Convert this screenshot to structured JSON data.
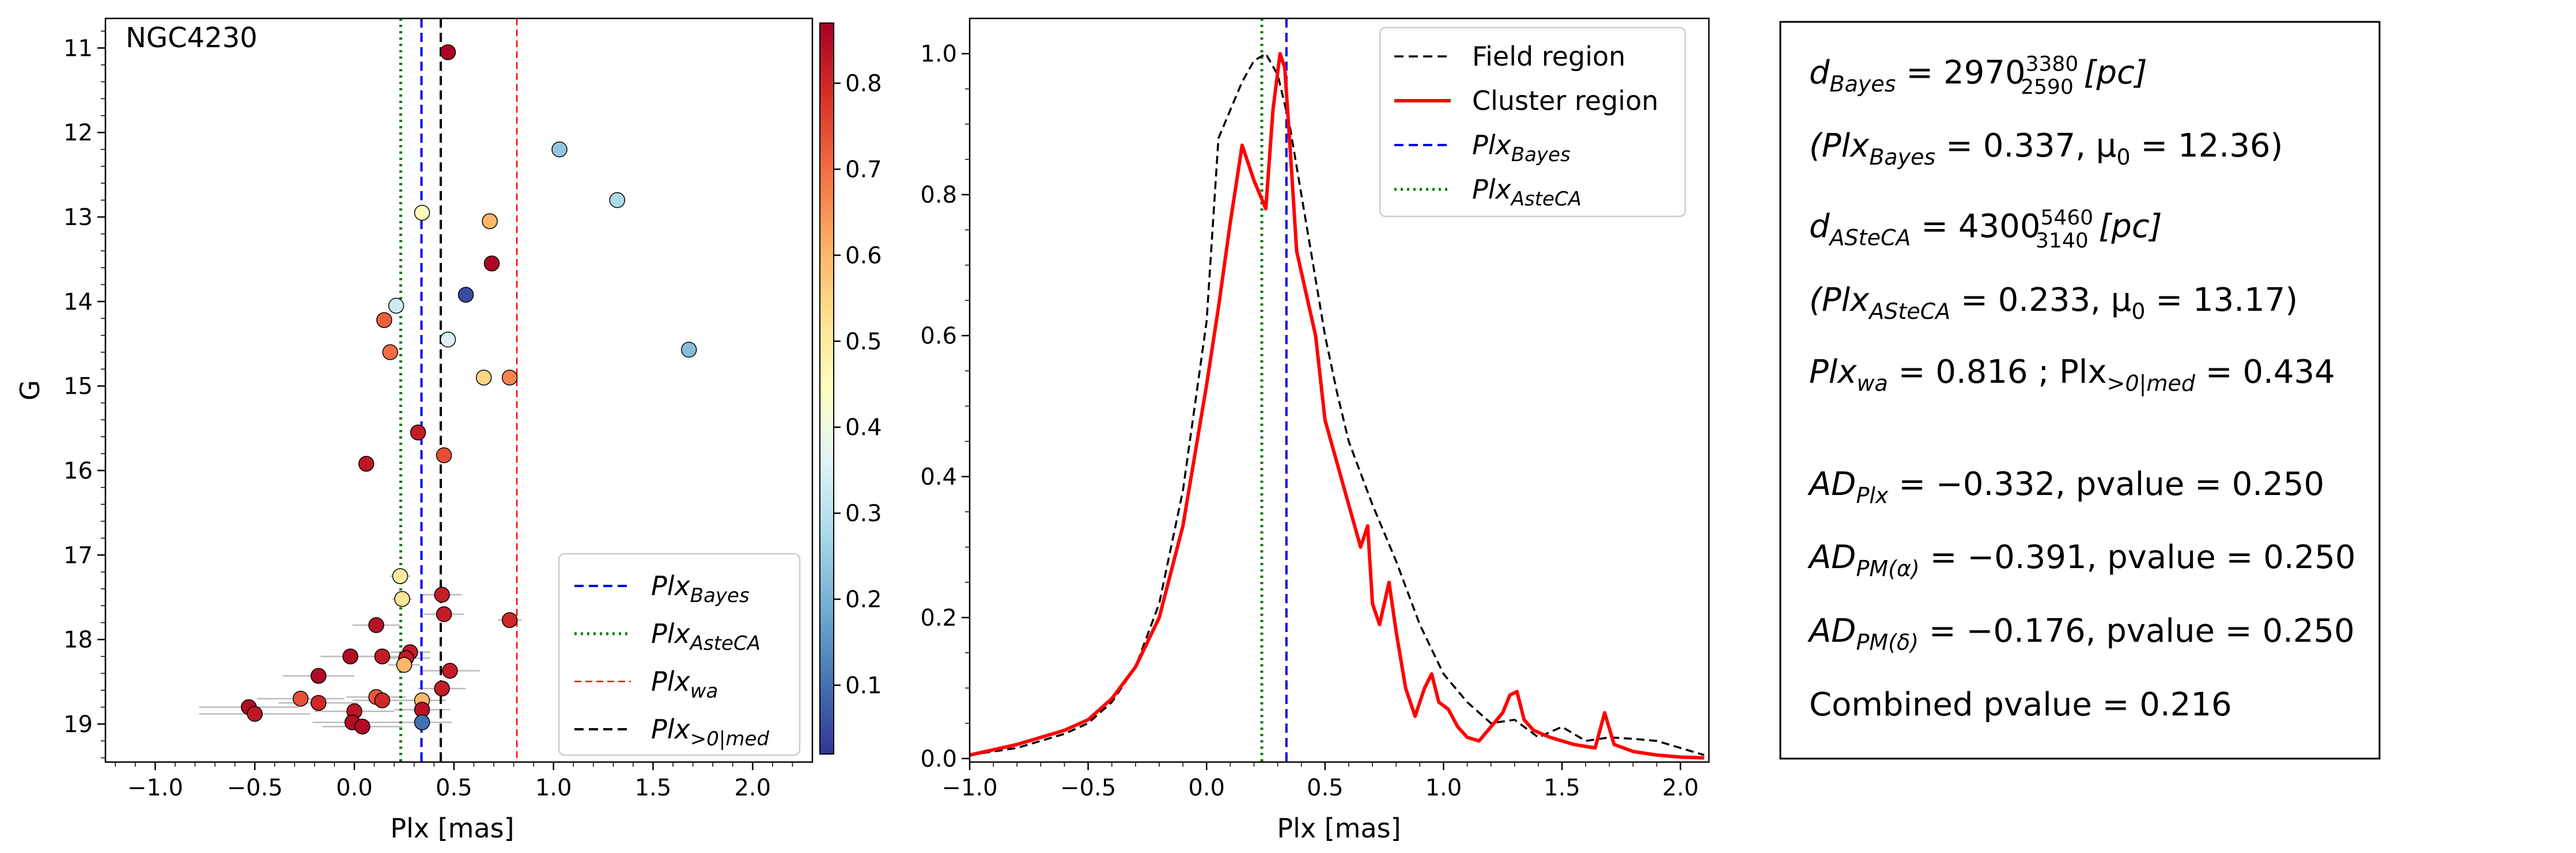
{
  "chart_data": [
    {
      "type": "scatter",
      "title": "NGC4230",
      "xlabel": "Plx [mas]",
      "ylabel": "G",
      "xlim": [
        -1.25,
        2.3
      ],
      "ylim": [
        19.45,
        10.65
      ],
      "y_inverted": true,
      "xticks": [
        "−1.0",
        "−0.5",
        "0.0",
        "0.5",
        "1.0",
        "1.5",
        "2.0"
      ],
      "yticks": [
        "11",
        "12",
        "13",
        "14",
        "15",
        "16",
        "17",
        "18",
        "19"
      ],
      "colorbar": {
        "colormap": "RdYlBu_r",
        "min": 0.02,
        "max": 0.87,
        "ticks": [
          "0.1",
          "0.2",
          "0.3",
          "0.4",
          "0.5",
          "0.6",
          "0.7",
          "0.8"
        ]
      },
      "vlines": [
        {
          "name": "Plx_Bayes",
          "x": 0.337,
          "color": "#0000ee",
          "style": "dashed"
        },
        {
          "name": "Plx_AsteCA",
          "x": 0.233,
          "color": "#008000",
          "style": "dotted"
        },
        {
          "name": "Plx_wa",
          "x": 0.816,
          "color": "#ff0000",
          "style": "dashed-thin"
        },
        {
          "name": "Plx_>0|med",
          "x": 0.434,
          "color": "#000000",
          "style": "dashed"
        }
      ],
      "legend": {
        "location": "bottom-right",
        "entries": [
          {
            "base": "Plx",
            "sub": "Bayes"
          },
          {
            "base": "Plx",
            "sub": "AsteCA"
          },
          {
            "base": "Plx",
            "sub": "wa"
          },
          {
            "base": "Plx",
            "sub": ">0|med"
          }
        ]
      },
      "points": [
        {
          "x": 0.47,
          "y": 11.05,
          "c": 0.86,
          "xerr": 0.02
        },
        {
          "x": 1.03,
          "y": 12.2,
          "c": 0.24,
          "xerr": 0.03
        },
        {
          "x": 1.32,
          "y": 12.8,
          "c": 0.28,
          "xerr": 0.03
        },
        {
          "x": 0.34,
          "y": 12.95,
          "c": 0.45,
          "xerr": 0.03
        },
        {
          "x": 0.68,
          "y": 13.05,
          "c": 0.6,
          "xerr": 0.03
        },
        {
          "x": 0.69,
          "y": 13.55,
          "c": 0.86,
          "xerr": 0.03
        },
        {
          "x": 0.56,
          "y": 13.92,
          "c": 0.05,
          "xerr": 0.03
        },
        {
          "x": 0.21,
          "y": 14.05,
          "c": 0.33,
          "xerr": 0.03
        },
        {
          "x": 0.15,
          "y": 14.22,
          "c": 0.72,
          "xerr": 0.03
        },
        {
          "x": 0.47,
          "y": 14.45,
          "c": 0.35,
          "xerr": 0.03
        },
        {
          "x": 1.68,
          "y": 14.57,
          "c": 0.22,
          "xerr": 0.04
        },
        {
          "x": 0.18,
          "y": 14.6,
          "c": 0.7,
          "xerr": 0.03
        },
        {
          "x": 0.65,
          "y": 14.9,
          "c": 0.55,
          "xerr": 0.03
        },
        {
          "x": 0.78,
          "y": 14.9,
          "c": 0.67,
          "xerr": 0.03
        },
        {
          "x": 0.32,
          "y": 15.55,
          "c": 0.82,
          "xerr": 0.04
        },
        {
          "x": 0.45,
          "y": 15.82,
          "c": 0.74,
          "xerr": 0.04
        },
        {
          "x": 0.06,
          "y": 15.92,
          "c": 0.83,
          "xerr": 0.04
        },
        {
          "x": 0.23,
          "y": 17.25,
          "c": 0.5,
          "xerr": 0.05
        },
        {
          "x": 0.44,
          "y": 17.47,
          "c": 0.82,
          "xerr": 0.1
        },
        {
          "x": 0.24,
          "y": 17.52,
          "c": 0.52,
          "xerr": 0.05
        },
        {
          "x": 0.45,
          "y": 17.7,
          "c": 0.82,
          "xerr": 0.1
        },
        {
          "x": 0.78,
          "y": 17.77,
          "c": 0.8,
          "xerr": 0.06
        },
        {
          "x": 0.11,
          "y": 17.83,
          "c": 0.84,
          "xerr": 0.12
        },
        {
          "x": 0.28,
          "y": 18.15,
          "c": 0.82,
          "xerr": 0.1
        },
        {
          "x": -0.02,
          "y": 18.2,
          "c": 0.85,
          "xerr": 0.15
        },
        {
          "x": 0.14,
          "y": 18.2,
          "c": 0.82,
          "xerr": 0.12
        },
        {
          "x": 0.26,
          "y": 18.22,
          "c": 0.82,
          "xerr": 0.12
        },
        {
          "x": 0.25,
          "y": 18.3,
          "c": 0.6,
          "xerr": 0.08
        },
        {
          "x": 0.48,
          "y": 18.37,
          "c": 0.82,
          "xerr": 0.15
        },
        {
          "x": -0.18,
          "y": 18.43,
          "c": 0.85,
          "xerr": 0.18
        },
        {
          "x": 0.44,
          "y": 18.58,
          "c": 0.82,
          "xerr": 0.12
        },
        {
          "x": 0.11,
          "y": 18.68,
          "c": 0.73,
          "xerr": 0.15
        },
        {
          "x": -0.27,
          "y": 18.7,
          "c": 0.74,
          "xerr": 0.22
        },
        {
          "x": 0.14,
          "y": 18.72,
          "c": 0.8,
          "xerr": 0.15
        },
        {
          "x": 0.34,
          "y": 18.72,
          "c": 0.6,
          "xerr": 0.12
        },
        {
          "x": -0.18,
          "y": 18.75,
          "c": 0.8,
          "xerr": 0.2
        },
        {
          "x": -0.53,
          "y": 18.8,
          "c": 0.85,
          "xerr": 0.25
        },
        {
          "x": 0.34,
          "y": 18.83,
          "c": 0.84,
          "xerr": 0.14
        },
        {
          "x": 0.0,
          "y": 18.85,
          "c": 0.83,
          "xerr": 0.2
        },
        {
          "x": -0.5,
          "y": 18.88,
          "c": 0.83,
          "xerr": 0.28
        },
        {
          "x": -0.01,
          "y": 18.98,
          "c": 0.85,
          "xerr": 0.2
        },
        {
          "x": 0.34,
          "y": 18.98,
          "c": 0.1,
          "xerr": 0.15
        },
        {
          "x": 0.04,
          "y": 19.03,
          "c": 0.85,
          "xerr": 0.2
        }
      ]
    },
    {
      "type": "line",
      "xlabel": "Plx [mas]",
      "ylabel": "",
      "xlim": [
        -1.0,
        2.12
      ],
      "ylim": [
        -0.005,
        1.05
      ],
      "xticks": [
        "−1.0",
        "−0.5",
        "0.0",
        "0.5",
        "1.0",
        "1.5",
        "2.0"
      ],
      "yticks": [
        "0.0",
        "0.2",
        "0.4",
        "0.6",
        "0.8",
        "1.0"
      ],
      "legend": {
        "location": "top-right",
        "entries": [
          {
            "label": "Field region"
          },
          {
            "label": "Cluster region"
          },
          {
            "base": "Plx",
            "sub": "Bayes"
          },
          {
            "base": "Plx",
            "sub": "AsteCA"
          }
        ]
      },
      "vlines": [
        {
          "name": "Plx_Bayes",
          "x": 0.337,
          "color": "#0000ee",
          "style": "dashed"
        },
        {
          "name": "Plx_AsteCA",
          "x": 0.233,
          "color": "#008000",
          "style": "dotted"
        }
      ],
      "series": [
        {
          "name": "Field region",
          "color": "#000000",
          "style": "dashed",
          "x": [
            -1.0,
            -0.8,
            -0.6,
            -0.5,
            -0.4,
            -0.3,
            -0.2,
            -0.1,
            0.0,
            0.05,
            0.1,
            0.15,
            0.2,
            0.25,
            0.3,
            0.35,
            0.4,
            0.45,
            0.5,
            0.55,
            0.6,
            0.7,
            0.8,
            0.9,
            1.0,
            1.1,
            1.2,
            1.3,
            1.4,
            1.5,
            1.6,
            1.7,
            1.8,
            1.9,
            2.0,
            2.1
          ],
          "y": [
            0.005,
            0.015,
            0.035,
            0.05,
            0.08,
            0.13,
            0.22,
            0.38,
            0.62,
            0.88,
            0.92,
            0.96,
            0.99,
            1.0,
            0.97,
            0.9,
            0.8,
            0.7,
            0.6,
            0.52,
            0.45,
            0.36,
            0.28,
            0.19,
            0.12,
            0.08,
            0.05,
            0.055,
            0.03,
            0.045,
            0.025,
            0.03,
            0.028,
            0.025,
            0.015,
            0.005
          ]
        },
        {
          "name": "Cluster region",
          "color": "#ff0000",
          "style": "solid",
          "x": [
            -1.0,
            -0.8,
            -0.6,
            -0.5,
            -0.4,
            -0.3,
            -0.2,
            -0.1,
            0.0,
            0.05,
            0.1,
            0.15,
            0.2,
            0.25,
            0.28,
            0.31,
            0.33,
            0.35,
            0.38,
            0.42,
            0.46,
            0.5,
            0.55,
            0.6,
            0.65,
            0.68,
            0.7,
            0.73,
            0.77,
            0.8,
            0.84,
            0.88,
            0.92,
            0.95,
            0.98,
            1.02,
            1.06,
            1.1,
            1.15,
            1.2,
            1.25,
            1.28,
            1.31,
            1.34,
            1.38,
            1.45,
            1.55,
            1.64,
            1.68,
            1.72,
            1.8,
            1.9,
            2.0,
            2.1
          ],
          "y": [
            0.005,
            0.02,
            0.04,
            0.055,
            0.085,
            0.13,
            0.2,
            0.33,
            0.53,
            0.64,
            0.76,
            0.87,
            0.82,
            0.78,
            0.92,
            1.0,
            0.98,
            0.88,
            0.72,
            0.66,
            0.6,
            0.48,
            0.42,
            0.36,
            0.3,
            0.33,
            0.22,
            0.19,
            0.25,
            0.18,
            0.1,
            0.06,
            0.1,
            0.12,
            0.08,
            0.07,
            0.045,
            0.03,
            0.025,
            0.045,
            0.065,
            0.09,
            0.095,
            0.055,
            0.04,
            0.03,
            0.02,
            0.015,
            0.065,
            0.02,
            0.01,
            0.005,
            0.002,
            0.001
          ]
        }
      ]
    }
  ],
  "stats": {
    "d_bayes": {
      "pre": "d",
      "sub": "Bayes",
      "eq": " = 2970",
      "lo": "2590",
      "hi": "3380",
      "unit": " [pc]"
    },
    "plx_bayes": {
      "open": "(Plx",
      "sub": "Bayes",
      "mid": " = 0.337,  μ",
      "sub2": "0",
      "end": " = 12.36)"
    },
    "d_asteca": {
      "pre": "d",
      "sub": "ASteCA",
      "eq": " = 4300",
      "lo": "3140",
      "hi": "5460",
      "unit": " [pc]"
    },
    "plx_asteca": {
      "open": "(Plx",
      "sub": "ASteCA",
      "mid": " = 0.233,  μ",
      "sub2": "0",
      "end": " = 13.17)"
    },
    "plx_wa": {
      "a": "Plx",
      "sa": "wa",
      "b": " = 0.816 ; Plx",
      "sb": ">0|med",
      "c": " = 0.434"
    },
    "ad_plx": {
      "pre": "AD",
      "sub": "Plx",
      "eq": " = −0.332,  pvalue = 0.250"
    },
    "ad_pma": {
      "pre": "AD",
      "sub": "PM(α)",
      "eq": " = −0.391,  pvalue = 0.250"
    },
    "ad_pmd": {
      "pre": "AD",
      "sub": "PM(δ)",
      "eq": " = −0.176,  pvalue = 0.250"
    },
    "combined": "Combined pvalue = 0.216"
  }
}
